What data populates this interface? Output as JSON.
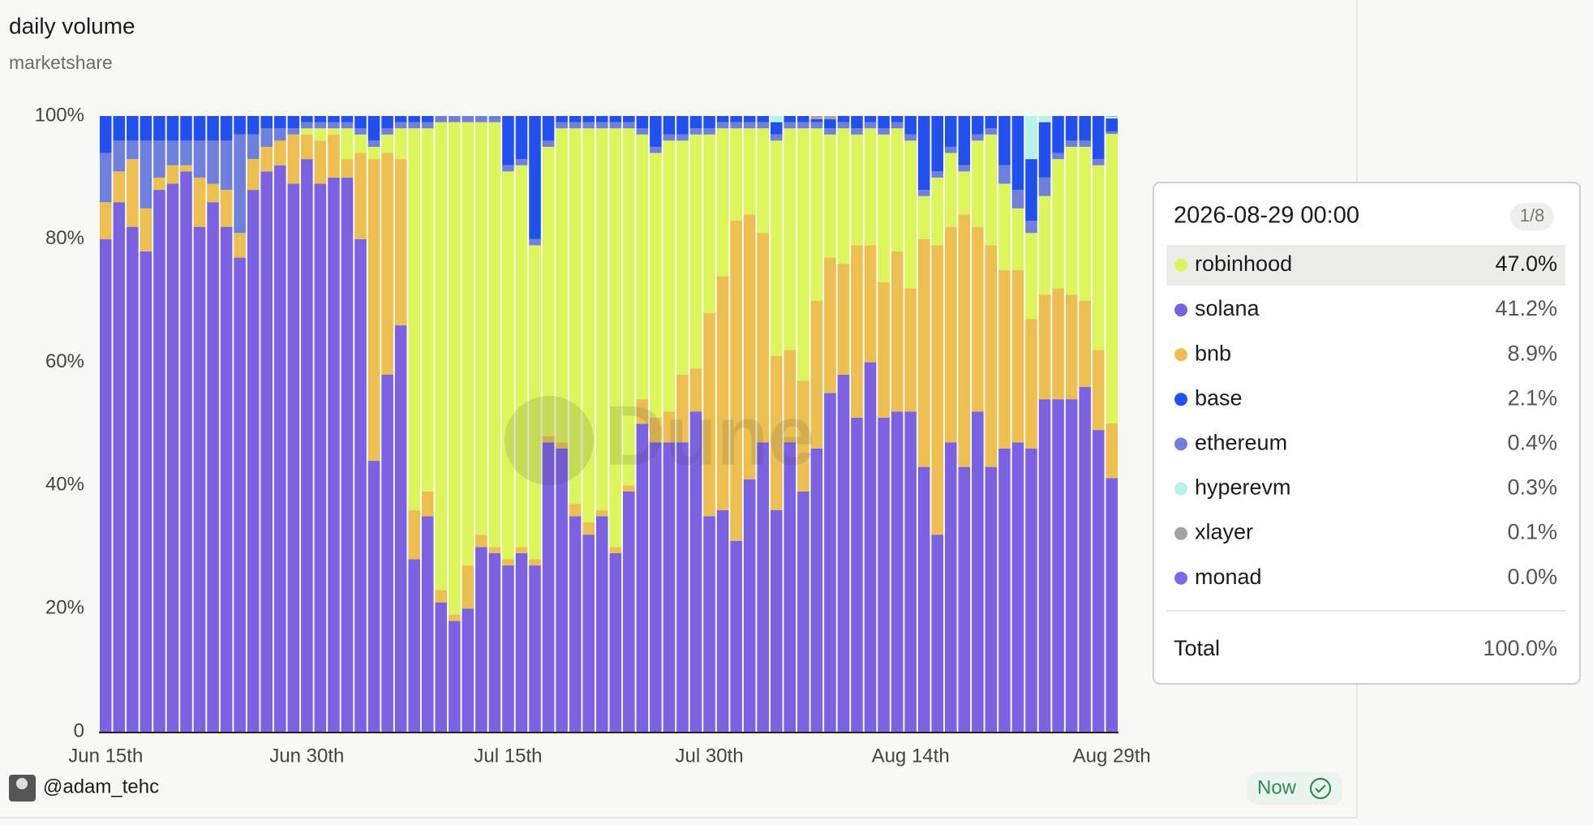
{
  "chart_data": {
    "type": "stacked-bar",
    "title": "daily volume",
    "subtitle": "marketshare",
    "watermark": "Dune",
    "categories": [
      "Jun 15th",
      null,
      null,
      null,
      null,
      null,
      null,
      null,
      null,
      null,
      null,
      null,
      null,
      null,
      null,
      "Jun 30th",
      null,
      null,
      null,
      null,
      null,
      null,
      null,
      null,
      null,
      null,
      null,
      null,
      null,
      null,
      "Jul 15th",
      null,
      null,
      null,
      null,
      null,
      null,
      null,
      null,
      null,
      null,
      null,
      null,
      null,
      null,
      "Jul 30th",
      null,
      null,
      null,
      null,
      null,
      null,
      null,
      null,
      null,
      null,
      null,
      null,
      null,
      null,
      "Aug 14th",
      null,
      null,
      null,
      null,
      null,
      null,
      null,
      null,
      null,
      null,
      null,
      null,
      null,
      null,
      "Aug 29th"
    ],
    "series": [
      {
        "name": "solana",
        "color": "#7a63e3",
        "values": [
          80,
          86,
          82,
          78,
          88,
          89,
          91,
          82,
          86,
          82,
          77,
          88,
          91,
          92,
          89,
          93,
          89,
          90,
          90,
          80,
          44,
          58,
          66,
          28,
          35,
          21,
          18,
          20,
          30,
          29,
          27,
          29,
          27,
          47,
          46,
          35,
          32,
          35,
          29,
          39,
          50,
          47,
          47,
          47,
          52,
          35,
          36,
          31,
          41,
          47,
          36,
          47,
          39,
          46,
          55,
          58,
          51,
          60,
          51,
          52,
          52,
          43,
          32,
          47,
          43,
          52,
          43,
          46,
          47,
          46,
          54,
          54,
          54,
          56,
          49,
          41.2
        ]
      },
      {
        "name": "bnb",
        "color": "#ecbf50",
        "values": [
          6,
          5,
          11,
          7,
          2,
          3,
          1,
          8,
          3,
          6,
          4,
          5,
          4,
          4,
          8,
          4,
          7,
          7,
          3,
          14,
          49,
          36,
          27,
          8,
          4,
          2,
          1,
          7,
          2,
          1,
          1,
          1,
          1,
          1,
          1,
          2,
          2,
          1,
          1,
          1,
          4,
          4,
          5,
          11,
          7,
          33,
          38,
          52,
          43,
          34,
          25,
          15,
          18,
          24,
          22,
          18,
          28,
          19,
          22,
          26,
          20,
          37,
          47,
          35,
          41,
          30,
          36,
          29,
          28,
          21,
          17,
          18,
          17,
          14,
          13,
          8.9
        ]
      },
      {
        "name": "robinhood",
        "color": "#dcf55a",
        "values": [
          0,
          0,
          0,
          0,
          0,
          0,
          0,
          0,
          0,
          0,
          0,
          0,
          0,
          0,
          0,
          1,
          2,
          1,
          5,
          3,
          2,
          3,
          5,
          62,
          59,
          76,
          80,
          72,
          67,
          69,
          63,
          62,
          51,
          47,
          51,
          61,
          64,
          62,
          68,
          58,
          43,
          43,
          44,
          38,
          38,
          29,
          24,
          15,
          14,
          17,
          35,
          36,
          41,
          28,
          20,
          22,
          18,
          19,
          24,
          20,
          24,
          7,
          11,
          12,
          7,
          14,
          18,
          14,
          10,
          14,
          16,
          21,
          24,
          25,
          30,
          47.0
        ]
      },
      {
        "name": "ethereum",
        "color": "#6e80dc",
        "values": [
          8,
          5,
          3,
          11,
          6,
          4,
          4,
          6,
          7,
          8,
          16,
          4,
          3,
          2,
          1,
          1,
          1,
          1,
          1,
          1,
          1,
          1,
          1,
          1,
          1,
          1,
          1,
          1,
          1,
          1,
          1,
          1,
          1,
          1,
          1,
          1,
          1,
          1,
          1,
          1,
          1,
          1,
          1,
          1,
          1,
          1,
          1,
          1,
          1,
          1,
          1,
          1,
          1,
          1,
          1,
          1,
          1,
          1,
          1,
          1,
          1,
          1,
          1,
          1,
          1,
          1,
          1,
          3,
          3,
          2,
          3,
          1,
          1,
          1,
          1,
          0.4
        ]
      },
      {
        "name": "base",
        "color": "#2250ee",
        "values": [
          6,
          4,
          4,
          4,
          4,
          4,
          4,
          4,
          4,
          4,
          3,
          3,
          2,
          2,
          2,
          1,
          1,
          1,
          1,
          2,
          4,
          2,
          1,
          1,
          1,
          0,
          0,
          0,
          0,
          0,
          8,
          7,
          20,
          4,
          1,
          1,
          1,
          1,
          1,
          1,
          2,
          5,
          3,
          3,
          2,
          2,
          1,
          1,
          1,
          1,
          2,
          1,
          1,
          0.5,
          1.5,
          1,
          2,
          1,
          2,
          1,
          3,
          12,
          9,
          5,
          8,
          3,
          2,
          8,
          12,
          10,
          9,
          6,
          4,
          4,
          7,
          2.1
        ]
      },
      {
        "name": "hyperevm",
        "color": "#b4f3e8",
        "values": [
          0,
          0,
          0,
          0,
          0,
          0,
          0,
          0,
          0,
          0,
          0,
          0,
          0,
          0,
          0,
          0,
          0,
          0,
          0,
          0,
          0,
          0,
          0,
          0,
          0,
          0,
          0,
          0,
          0,
          0,
          0,
          0,
          0,
          0,
          0,
          0,
          0,
          0,
          0,
          0,
          0,
          0,
          0,
          0,
          0,
          0,
          0,
          0,
          0,
          0,
          1,
          0,
          0,
          0,
          0,
          0,
          0,
          0,
          0,
          0,
          0,
          0,
          0,
          0,
          0,
          0,
          0,
          0,
          0,
          7,
          1,
          0,
          0,
          0,
          0,
          0.3
        ]
      },
      {
        "name": "xlayer",
        "color": "#a3a3a3",
        "values": [
          0,
          0,
          0,
          0,
          0,
          0,
          0,
          0,
          0,
          0,
          0,
          0,
          0,
          0,
          0,
          0,
          0,
          0,
          0,
          0,
          0,
          0,
          0,
          0,
          0,
          0,
          0,
          0,
          0,
          0,
          0,
          0,
          0,
          0,
          0,
          0,
          0,
          0,
          0,
          0,
          0,
          0,
          0,
          0,
          0,
          0,
          0,
          0,
          0,
          0,
          0,
          0,
          0,
          0.5,
          0.5,
          0,
          0,
          0,
          0,
          0,
          0,
          0,
          0,
          0,
          0,
          0,
          0,
          0,
          0,
          0,
          0,
          0,
          0,
          0,
          0,
          0.1
        ]
      },
      {
        "name": "monad",
        "color": "#8066ee",
        "values": [
          0,
          0,
          0,
          0,
          0,
          0,
          0,
          0,
          0,
          0,
          0,
          0,
          0,
          0,
          0,
          0,
          0,
          0,
          0,
          0,
          0,
          0,
          0,
          0,
          0,
          0,
          0,
          0,
          0,
          0,
          0,
          0,
          0,
          0,
          0,
          0,
          0,
          0,
          0,
          0,
          0,
          0,
          0,
          0,
          0,
          0,
          0,
          0,
          0,
          0,
          0,
          0,
          0,
          0,
          0,
          0,
          0,
          0,
          0,
          0,
          0,
          0,
          0,
          0,
          0,
          0,
          0,
          0,
          0,
          0,
          0,
          0,
          0,
          0,
          0,
          0
        ]
      }
    ],
    "ylim": [
      0,
      100
    ],
    "yticks": [
      0,
      {
        "value": 20,
        "label": "20%"
      },
      {
        "value": 40,
        "label": "40%"
      },
      {
        "value": 60,
        "label": "60%"
      },
      {
        "value": 80,
        "label": "80%"
      },
      {
        "value": 100,
        "label": "100%"
      }
    ],
    "grid": false,
    "tooltip": {
      "title": "2026-08-29 00:00",
      "page": "1/8",
      "rows": [
        {
          "name": "robinhood",
          "value": "47.0%"
        },
        {
          "name": "solana",
          "value": "41.2%"
        },
        {
          "name": "bnb",
          "value": "8.9%"
        },
        {
          "name": "base",
          "value": "2.1%"
        },
        {
          "name": "ethereum",
          "value": "0.4%"
        },
        {
          "name": "hyperevm",
          "value": "0.3%"
        },
        {
          "name": "xlayer",
          "value": "0.1%"
        },
        {
          "name": "monad",
          "value": "0.0%"
        }
      ],
      "total_name": "Total",
      "total": "100.0%"
    }
  },
  "footer": {
    "author": "@adam_tehc",
    "status": "Now"
  }
}
